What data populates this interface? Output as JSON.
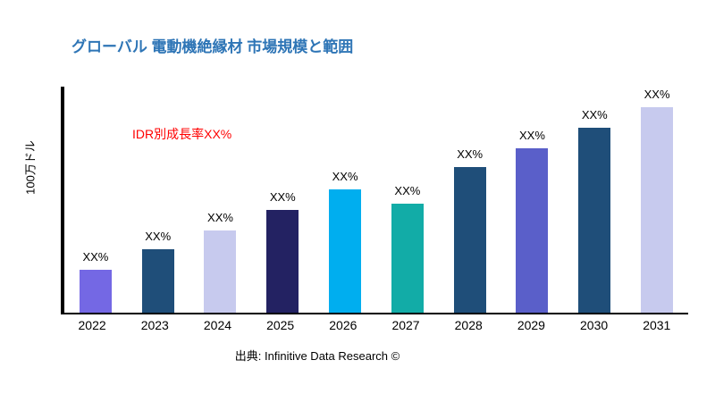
{
  "header": {
    "title": "グローバル 電動機絶縁材 市場規模と範囲"
  },
  "annotation": {
    "text": "IDR別成長率XX%",
    "color": "#FF0000"
  },
  "axis": {
    "ylabel": "100万ドル"
  },
  "footer": {
    "source": "出典: Infinitive Data Research ©"
  },
  "colors": {
    "title": "#2E75B6",
    "annotation": "#FF0000",
    "axis": "#000000"
  },
  "chart_data": {
    "type": "bar",
    "title": "グローバル 電動機絶縁材 市場規模と範囲",
    "xlabel": "",
    "ylabel": "100万ドル",
    "categories": [
      "2022",
      "2023",
      "2024",
      "2025",
      "2026",
      "2027",
      "2028",
      "2029",
      "2030",
      "2031"
    ],
    "values": [
      21,
      31,
      40,
      50,
      60,
      53,
      71,
      80,
      90,
      100
    ],
    "bar_labels": [
      "XX%",
      "XX%",
      "XX%",
      "XX%",
      "XX%",
      "XX%",
      "XX%",
      "XX%",
      "XX%",
      "XX%"
    ],
    "bar_colors": [
      "#7468E4",
      "#1F4E79",
      "#C7CAEE",
      "#232262",
      "#00AEEF",
      "#12ACA7",
      "#1F4E79",
      "#5A5FC9",
      "#1F4E79",
      "#C7CAEE"
    ],
    "ylim": [
      0,
      110
    ],
    "grid": false,
    "legend": "none",
    "annotation": "IDR別成長率XX%",
    "source": "出典: Infinitive Data Research ©"
  }
}
